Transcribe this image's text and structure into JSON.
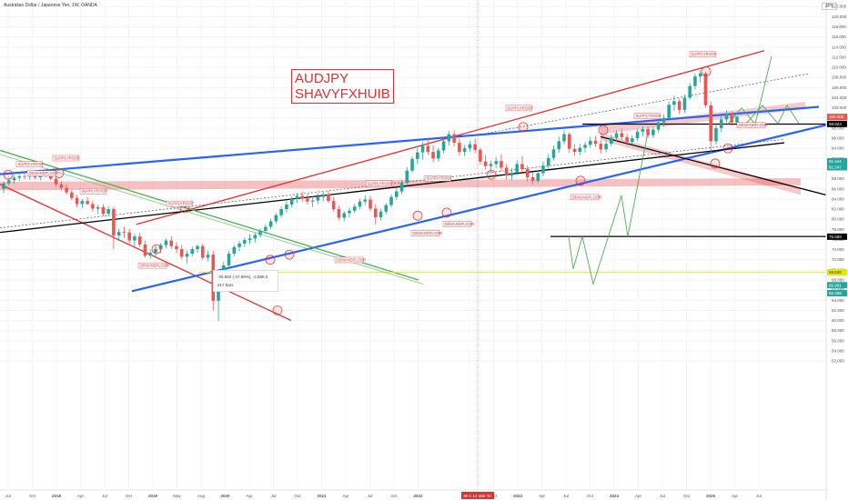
{
  "header": {
    "title": "Australian Dollar / Japanese Yen, 1W, OANDA",
    "currency": "JPY"
  },
  "note": {
    "line1": "AUDJPY",
    "line2": "SHAVYFXHUIB"
  },
  "tooltip": {
    "line1": "-25.862 (-27.99%), -2,586.2",
    "line2": "217 bars"
  },
  "colors": {
    "up": "#26a69a",
    "down": "#ef5350",
    "resistance": "#e03030",
    "support": "#2962ff",
    "trend": "#000000",
    "green": "#4caf50",
    "yellow": "#e6e600"
  },
  "chart_data": {
    "type": "candlestick",
    "title": "Australian Dollar / Japanese Yen, 1W, OANDA",
    "ylim": [
      50,
      122
    ],
    "y_ticks": [
      "122.000",
      "120.000",
      "118.000",
      "116.000",
      "114.000",
      "112.000",
      "110.000",
      "108.000",
      "106.000",
      "104.000",
      "102.000",
      "100.000",
      "98.000",
      "96.000",
      "94.000",
      "92.000",
      "90.000",
      "88.000",
      "86.000",
      "84.000",
      "82.000",
      "80.000",
      "78.000",
      "76.000",
      "74.000",
      "72.000",
      "70.000",
      "68.000",
      "66.000",
      "64.000",
      "62.000",
      "60.000",
      "58.000",
      "56.000",
      "54.000",
      "52.000"
    ],
    "x_ticks": [
      "Jul",
      "Oct",
      "2018",
      "Apr",
      "Jul",
      "Oct",
      "2019",
      "May",
      "Aug",
      "2020",
      "Apr",
      "Jul",
      "Oct",
      "2021",
      "Apr",
      "Jul",
      "Oct",
      "2022",
      "Mon 14 Mar '22",
      "Jul",
      "Oct",
      "2023",
      "Apr",
      "Jul",
      "Oct",
      "2024",
      "Apr",
      "Jul",
      "Oct",
      "2025",
      "Apr",
      "Jul"
    ],
    "price_labels": [
      {
        "text": "100.206",
        "value": 100.206,
        "color": "#ef5350"
      },
      {
        "text": "98.823",
        "value": 98.823,
        "color": "#000000"
      },
      {
        "text": "91.444",
        "value": 91.444,
        "color": "#26a69a"
      },
      {
        "text": "91.347",
        "value": 91.347,
        "color": "#26a69a"
      },
      {
        "text": "76.558",
        "value": 76.558,
        "color": "#000000"
      },
      {
        "text": "69.526",
        "value": 69.526,
        "color": "#e6e600"
      },
      {
        "text": "66.981",
        "value": 66.981,
        "color": "#26a69a"
      },
      {
        "text": "66.488",
        "value": 66.488,
        "color": "#26a69a"
      }
    ],
    "annotations": [
      {
        "text": "SUPPLYROOF",
        "i": 7
      },
      {
        "text": "SUPPLYROOF",
        "i": 20
      },
      {
        "text": "SUPPLYROOF",
        "i": 28
      },
      {
        "text": "SUPPLYROOF",
        "i": 63
      },
      {
        "text": "SUPPLYROOF",
        "i": 65
      },
      {
        "text": "SUPPLYROOF",
        "i": 75
      },
      {
        "text": "SUPPLYROOF",
        "i": 112
      },
      {
        "text": "SUPPLYROOF",
        "i": 120
      },
      {
        "text": "SUPPLYROOF",
        "i": 148
      },
      {
        "text": "DEMANDFLOOR",
        "i": 21
      },
      {
        "text": "DEMANDFLOOR",
        "i": 56
      },
      {
        "text": "DEMANDFLOOR",
        "i": 71
      },
      {
        "text": "DEMANDFLOOR",
        "i": 78
      },
      {
        "text": "DEMANDFLOOR",
        "i": 100
      },
      {
        "text": "DEMANDFLOOR",
        "i": 160
      },
      {
        "text": "DEMANDFLOOR",
        "i": 162
      }
    ],
    "series": [
      {
        "name": "AUDJPY",
        "ohlc": [
          [
            86.0,
            87.5,
            85.1,
            87.1
          ],
          [
            87.1,
            88.2,
            86.7,
            87.7
          ],
          [
            87.7,
            88.7,
            87.0,
            88.2
          ],
          [
            88.2,
            88.9,
            87.6,
            88.5
          ],
          [
            88.5,
            89.1,
            87.9,
            88.4
          ],
          [
            88.4,
            89.0,
            87.8,
            88.6
          ],
          [
            88.6,
            89.0,
            87.9,
            88.3
          ],
          [
            88.3,
            89.3,
            87.7,
            88.9
          ],
          [
            88.9,
            89.5,
            88.2,
            88.8
          ],
          [
            88.8,
            89.3,
            87.7,
            88.0
          ],
          [
            88.0,
            88.4,
            86.4,
            86.9
          ],
          [
            86.9,
            87.5,
            85.6,
            86.2
          ],
          [
            86.2,
            86.9,
            84.8,
            85.3
          ],
          [
            85.3,
            85.9,
            83.7,
            84.2
          ],
          [
            84.2,
            84.8,
            82.4,
            83.0
          ],
          [
            83.0,
            84.0,
            82.2,
            83.6
          ],
          [
            83.6,
            84.4,
            82.8,
            83.0
          ],
          [
            83.0,
            83.7,
            81.5,
            82.1
          ],
          [
            82.1,
            82.9,
            81.0,
            82.4
          ],
          [
            82.4,
            83.0,
            80.6,
            81.1
          ],
          [
            81.1,
            82.6,
            80.6,
            82.0
          ],
          [
            82.0,
            82.4,
            74.1,
            76.8
          ],
          [
            76.8,
            78.1,
            75.7,
            77.5
          ],
          [
            77.5,
            78.5,
            76.3,
            77.4
          ],
          [
            77.4,
            78.1,
            75.2,
            75.8
          ],
          [
            75.8,
            77.1,
            74.6,
            76.6
          ],
          [
            76.6,
            77.4,
            74.5,
            75.0
          ],
          [
            75.0,
            75.8,
            72.4,
            72.8
          ],
          [
            72.8,
            74.0,
            72.2,
            73.4
          ],
          [
            73.4,
            74.8,
            72.5,
            74.1
          ],
          [
            74.1,
            75.3,
            73.3,
            74.9
          ],
          [
            74.9,
            76.2,
            74.3,
            75.8
          ],
          [
            75.8,
            76.7,
            74.2,
            74.7
          ],
          [
            74.7,
            75.5,
            73.3,
            74.1
          ],
          [
            74.1,
            74.9,
            72.1,
            72.6
          ],
          [
            72.6,
            73.8,
            71.3,
            73.2
          ],
          [
            73.2,
            74.6,
            72.6,
            74.1
          ],
          [
            74.1,
            75.0,
            73.4,
            74.7
          ],
          [
            74.7,
            75.1,
            72.0,
            72.4
          ],
          [
            72.4,
            73.8,
            71.7,
            73.0
          ],
          [
            73.0,
            73.8,
            62.0,
            63.9
          ],
          [
            63.9,
            68.5,
            59.9,
            68.0
          ],
          [
            68.0,
            71.7,
            67.6,
            70.9
          ],
          [
            70.9,
            73.8,
            70.3,
            73.2
          ],
          [
            73.2,
            74.9,
            72.7,
            74.5
          ],
          [
            74.5,
            75.7,
            73.7,
            75.2
          ],
          [
            75.2,
            76.4,
            74.5,
            75.9
          ],
          [
            75.9,
            77.0,
            75.1,
            76.2
          ],
          [
            76.2,
            77.3,
            75.4,
            76.9
          ],
          [
            76.9,
            78.2,
            76.4,
            77.7
          ],
          [
            77.7,
            79.0,
            77.1,
            78.5
          ],
          [
            78.5,
            80.1,
            78.0,
            79.6
          ],
          [
            79.6,
            81.2,
            79.1,
            80.8
          ],
          [
            80.8,
            82.5,
            80.3,
            82.0
          ],
          [
            82.0,
            83.6,
            81.3,
            82.9
          ],
          [
            82.9,
            84.5,
            82.3,
            84.0
          ],
          [
            84.0,
            85.2,
            83.2,
            84.6
          ],
          [
            84.6,
            85.5,
            83.4,
            84.1
          ],
          [
            84.1,
            85.0,
            82.9,
            83.5
          ],
          [
            83.5,
            84.6,
            82.4,
            83.7
          ],
          [
            83.7,
            85.1,
            83.0,
            84.4
          ],
          [
            84.4,
            85.5,
            83.5,
            84.9
          ],
          [
            84.9,
            85.6,
            83.2,
            83.6
          ],
          [
            83.6,
            84.4,
            81.5,
            82.0
          ],
          [
            82.0,
            82.7,
            79.8,
            80.3
          ],
          [
            80.3,
            81.6,
            79.6,
            81.2
          ],
          [
            81.2,
            82.3,
            80.3,
            81.7
          ],
          [
            81.7,
            83.1,
            81.2,
            82.5
          ],
          [
            82.5,
            84.1,
            82.0,
            83.5
          ],
          [
            83.5,
            84.7,
            82.8,
            83.9
          ],
          [
            83.9,
            84.6,
            81.6,
            82.1
          ],
          [
            82.1,
            83.0,
            79.0,
            80.4
          ],
          [
            80.4,
            82.0,
            79.8,
            81.5
          ],
          [
            81.5,
            83.2,
            81.0,
            82.8
          ],
          [
            82.8,
            84.9,
            82.3,
            84.4
          ],
          [
            84.4,
            86.1,
            83.8,
            85.5
          ],
          [
            85.5,
            87.8,
            85.0,
            87.2
          ],
          [
            87.2,
            90.3,
            86.6,
            89.6
          ],
          [
            89.6,
            92.4,
            89.2,
            91.9
          ],
          [
            91.9,
            94.1,
            90.9,
            93.2
          ],
          [
            93.2,
            95.2,
            91.8,
            94.5
          ],
          [
            94.5,
            95.8,
            92.7,
            93.3
          ],
          [
            93.3,
            94.6,
            91.2,
            92.0
          ],
          [
            92.0,
            94.1,
            91.4,
            93.6
          ],
          [
            93.6,
            96.1,
            93.0,
            95.4
          ],
          [
            95.4,
            97.4,
            94.5,
            96.8
          ],
          [
            96.8,
            97.6,
            94.4,
            95.1
          ],
          [
            95.1,
            95.9,
            92.6,
            93.3
          ],
          [
            93.3,
            94.7,
            92.5,
            94.0
          ],
          [
            94.0,
            95.5,
            93.3,
            94.8
          ],
          [
            94.8,
            95.9,
            93.0,
            93.7
          ],
          [
            93.7,
            94.2,
            90.8,
            91.4
          ],
          [
            91.4,
            92.7,
            89.8,
            90.5
          ],
          [
            90.5,
            91.6,
            89.2,
            90.9
          ],
          [
            90.9,
            92.3,
            90.1,
            91.5
          ],
          [
            91.5,
            92.8,
            89.6,
            90.2
          ],
          [
            90.2,
            90.9,
            87.8,
            88.6
          ],
          [
            88.6,
            90.1,
            87.7,
            89.2
          ],
          [
            89.2,
            91.6,
            88.7,
            90.9
          ],
          [
            90.9,
            92.5,
            89.3,
            89.9
          ],
          [
            89.9,
            90.6,
            87.5,
            88.3
          ],
          [
            88.3,
            89.3,
            86.8,
            87.6
          ],
          [
            87.6,
            89.7,
            87.1,
            89.1
          ],
          [
            89.1,
            91.4,
            88.5,
            90.6
          ],
          [
            90.6,
            92.9,
            90.0,
            92.1
          ],
          [
            92.1,
            94.6,
            91.6,
            93.8
          ],
          [
            93.8,
            96.3,
            93.1,
            95.4
          ],
          [
            95.4,
            97.6,
            94.8,
            96.8
          ],
          [
            96.8,
            97.2,
            93.1,
            93.9
          ],
          [
            93.9,
            94.8,
            92.5,
            93.3
          ],
          [
            93.3,
            94.9,
            92.6,
            94.1
          ],
          [
            94.1,
            95.3,
            93.2,
            94.7
          ],
          [
            94.7,
            96.3,
            94.1,
            95.5
          ],
          [
            95.5,
            96.5,
            94.3,
            94.9
          ],
          [
            94.9,
            95.5,
            93.0,
            93.8
          ],
          [
            93.8,
            95.6,
            93.2,
            94.9
          ],
          [
            94.9,
            96.8,
            94.4,
            96.1
          ],
          [
            96.1,
            97.6,
            95.4,
            97.0
          ],
          [
            97.0,
            97.9,
            95.6,
            96.2
          ],
          [
            96.2,
            96.9,
            94.5,
            95.3
          ],
          [
            95.3,
            96.6,
            94.7,
            96.0
          ],
          [
            96.0,
            97.8,
            95.4,
            97.3
          ],
          [
            97.3,
            98.4,
            96.4,
            97.8
          ],
          [
            97.8,
            98.3,
            96.1,
            96.6
          ],
          [
            96.6,
            98.3,
            96.0,
            97.7
          ],
          [
            97.7,
            99.7,
            97.1,
            99.1
          ],
          [
            99.1,
            100.7,
            98.3,
            100.0
          ],
          [
            100.0,
            103.3,
            99.5,
            102.6
          ],
          [
            102.6,
            104.4,
            101.4,
            103.3
          ],
          [
            103.3,
            103.8,
            100.8,
            101.6
          ],
          [
            101.6,
            104.6,
            101.0,
            104.0
          ],
          [
            104.0,
            106.9,
            103.6,
            106.3
          ],
          [
            106.3,
            108.8,
            105.6,
            108.2
          ],
          [
            108.2,
            109.4,
            107.0,
            108.8
          ],
          [
            108.8,
            109.1,
            102.0,
            102.5
          ],
          [
            102.5,
            103.3,
            93.0,
            95.4
          ],
          [
            95.4,
            98.6,
            94.7,
            98.0
          ],
          [
            98.0,
            100.4,
            97.2,
            99.7
          ],
          [
            99.7,
            101.5,
            99.1,
            100.9
          ],
          [
            100.9,
            101.3,
            98.4,
            99.1
          ],
          [
            99.1,
            100.5,
            98.3,
            100.2
          ]
        ]
      }
    ],
    "lines": [
      {
        "name": "upper-red-channel",
        "color": "#e03030",
        "from": [
          150,
          79.0
        ],
        "to": [
          840,
          113.3
        ]
      },
      {
        "name": "lower-red-channel",
        "color": "#e03030",
        "from": [
          0,
          86.9
        ],
        "to": [
          320,
          60.0
        ]
      },
      {
        "name": "blue-resistance",
        "color": "#2962ff",
        "from": [
          0,
          88.9
        ],
        "to": [
          900,
          102.2
        ]
      },
      {
        "name": "blue-support",
        "color": "#2962ff",
        "from": [
          145,
          65.8
        ],
        "to": [
          910,
          98.7
        ]
      },
      {
        "name": "black-rising",
        "color": "#000000",
        "from": [
          0,
          77.4
        ],
        "to": [
          862,
          95.1
        ]
      },
      {
        "name": "black-falling",
        "color": "#000000",
        "from": [
          660,
          96.3
        ],
        "to": [
          910,
          84.7
        ]
      },
      {
        "name": "green-falling",
        "color": "#4caf50",
        "from": [
          0,
          93.6
        ],
        "to": [
          460,
          68.0
        ]
      },
      {
        "name": "horizontal-98",
        "color": "#000000",
        "from": [
          640,
          98.8
        ],
        "to": [
          910,
          98.8
        ]
      },
      {
        "name": "horizontal-76",
        "color": "#000000",
        "from": [
          605,
          76.6
        ],
        "to": [
          910,
          76.6
        ]
      },
      {
        "name": "horizontal-69",
        "color": "#e6e600",
        "from": [
          218,
          69.5
        ],
        "to": [
          910,
          69.5
        ]
      }
    ]
  }
}
